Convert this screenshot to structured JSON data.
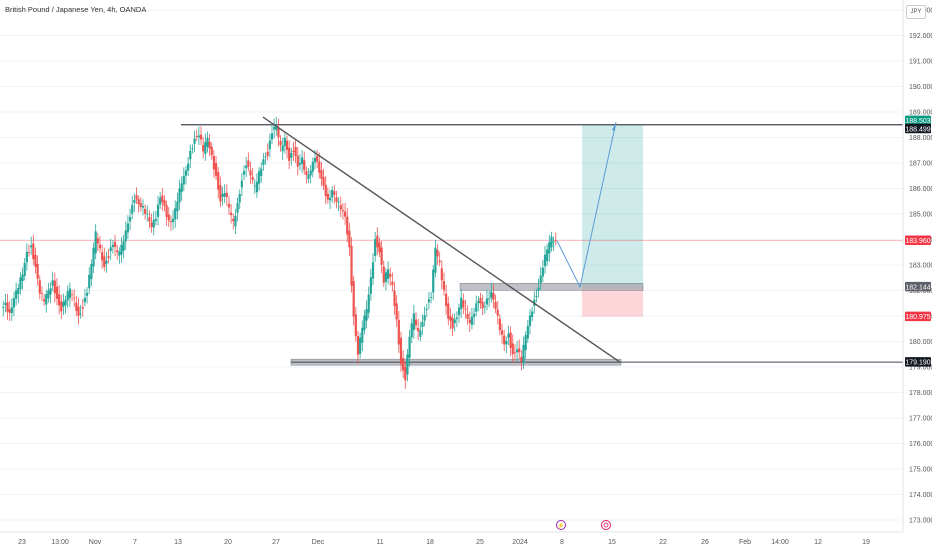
{
  "header": {
    "title": "British Pound / Japanese Yen, 4h, OANDA",
    "currency": "JPY"
  },
  "colors": {
    "up": "#26a69a",
    "down": "#ef5350",
    "bg": "#ffffff",
    "grid": "#f0f3f8"
  },
  "chart_data": {
    "type": "candlestick",
    "ylim": [
      172.6,
      193.4
    ],
    "y_ticks": [
      "193.000",
      "192.000",
      "191.000",
      "190.000",
      "189.000",
      "188.000",
      "187.000",
      "186.000",
      "185.000",
      "184.000",
      "183.000",
      "182.000",
      "181.000",
      "180.000",
      "179.000",
      "178.000",
      "177.000",
      "176.000",
      "175.000",
      "174.000",
      "173.000"
    ],
    "x_ticks": [
      "23",
      "13:00",
      "Nov",
      "7",
      "13",
      "20",
      "27",
      "Dec",
      "11",
      "18",
      "25",
      "2024",
      "8",
      "15",
      "22",
      "26",
      "Feb",
      "14:00",
      "12",
      "19"
    ],
    "close_path": [
      [
        0,
        181.2
      ],
      [
        0.03,
        181.4
      ],
      [
        0.05,
        181.1
      ],
      [
        0.07,
        181.8
      ],
      [
        0.09,
        182.2
      ],
      [
        0.11,
        182.6
      ],
      [
        0.13,
        183.4
      ],
      [
        0.15,
        183.7
      ],
      [
        0.17,
        183.0
      ],
      [
        0.19,
        182.0
      ],
      [
        0.21,
        181.6
      ],
      [
        0.23,
        181.9
      ],
      [
        0.25,
        182.3
      ],
      [
        0.27,
        181.7
      ],
      [
        0.29,
        181.3
      ],
      [
        0.31,
        181.7
      ],
      [
        0.33,
        182.0
      ],
      [
        0.35,
        181.6
      ],
      [
        0.37,
        181.0
      ],
      [
        0.39,
        181.4
      ],
      [
        0.41,
        182.0
      ],
      [
        0.43,
        183.0
      ],
      [
        0.45,
        184.2
      ],
      [
        0.47,
        183.6
      ],
      [
        0.49,
        183.0
      ],
      [
        0.51,
        183.4
      ],
      [
        0.53,
        183.8
      ],
      [
        0.55,
        183.4
      ],
      [
        0.57,
        183.7
      ],
      [
        0.59,
        184.4
      ],
      [
        0.61,
        185.0
      ],
      [
        0.63,
        185.6
      ],
      [
        0.65,
        185.3
      ],
      [
        0.67,
        185.2
      ],
      [
        0.69,
        185.0
      ],
      [
        0.71,
        184.6
      ],
      [
        0.73,
        184.9
      ],
      [
        0.75,
        185.6
      ],
      [
        0.77,
        185.2
      ],
      [
        0.79,
        184.7
      ],
      [
        0.81,
        184.9
      ],
      [
        0.83,
        185.6
      ],
      [
        0.85,
        186.2
      ],
      [
        0.87,
        186.6
      ],
      [
        0.89,
        187.4
      ],
      [
        0.91,
        188.0
      ],
      [
        0.93,
        188.2
      ],
      [
        0.95,
        187.5
      ],
      [
        0.97,
        187.9
      ],
      [
        0.99,
        187.2
      ],
      [
        1.01,
        186.5
      ],
      [
        1.03,
        185.6
      ],
      [
        1.05,
        185.9
      ],
      [
        1.07,
        185.2
      ],
      [
        1.09,
        184.6
      ],
      [
        1.11,
        185.4
      ],
      [
        1.13,
        186.4
      ],
      [
        1.15,
        187.0
      ],
      [
        1.17,
        186.5
      ],
      [
        1.19,
        186.0
      ],
      [
        1.21,
        186.6
      ],
      [
        1.23,
        187.2
      ],
      [
        1.25,
        187.4
      ],
      [
        1.27,
        188.2
      ],
      [
        1.29,
        188.4
      ],
      [
        1.31,
        187.6
      ],
      [
        1.33,
        188.0
      ],
      [
        1.35,
        187.2
      ],
      [
        1.37,
        187.5
      ],
      [
        1.39,
        186.8
      ],
      [
        1.41,
        187.1
      ],
      [
        1.43,
        186.5
      ],
      [
        1.45,
        186.8
      ],
      [
        1.47,
        187.3
      ],
      [
        1.49,
        186.6
      ],
      [
        1.51,
        186.0
      ],
      [
        1.53,
        185.5
      ],
      [
        1.55,
        186.0
      ],
      [
        1.57,
        185.6
      ],
      [
        1.59,
        185.2
      ],
      [
        1.61,
        184.8
      ],
      [
        1.63,
        183.6
      ],
      [
        1.65,
        181.0
      ],
      [
        1.67,
        179.6
      ],
      [
        1.69,
        180.6
      ],
      [
        1.71,
        181.2
      ],
      [
        1.73,
        182.4
      ],
      [
        1.75,
        184.0
      ],
      [
        1.77,
        183.6
      ],
      [
        1.79,
        182.4
      ],
      [
        1.81,
        182.8
      ],
      [
        1.83,
        182.1
      ],
      [
        1.85,
        180.8
      ],
      [
        1.87,
        179.2
      ],
      [
        1.89,
        178.6
      ],
      [
        1.91,
        180.2
      ],
      [
        1.93,
        181.0
      ],
      [
        1.95,
        180.3
      ],
      [
        1.97,
        180.8
      ],
      [
        1.99,
        181.4
      ],
      [
        2.01,
        181.8
      ],
      [
        2.03,
        183.6
      ],
      [
        2.05,
        183.0
      ],
      [
        2.07,
        182.0
      ],
      [
        2.09,
        181.0
      ],
      [
        2.11,
        180.6
      ],
      [
        2.13,
        180.9
      ],
      [
        2.15,
        181.6
      ],
      [
        2.17,
        181.2
      ],
      [
        2.19,
        180.8
      ],
      [
        2.21,
        181.2
      ],
      [
        2.23,
        181.6
      ],
      [
        2.25,
        181.2
      ],
      [
        2.27,
        181.6
      ],
      [
        2.29,
        182.0
      ],
      [
        2.31,
        181.4
      ],
      [
        2.33,
        180.5
      ],
      [
        2.35,
        179.8
      ],
      [
        2.37,
        180.2
      ],
      [
        2.39,
        179.5
      ],
      [
        2.41,
        179.8
      ],
      [
        2.43,
        179.3
      ],
      [
        2.45,
        180.2
      ],
      [
        2.47,
        180.9
      ],
      [
        2.49,
        181.6
      ],
      [
        2.51,
        182.2
      ],
      [
        2.53,
        183.0
      ],
      [
        2.55,
        183.6
      ],
      [
        2.57,
        184.0
      ],
      [
        2.59,
        183.9
      ]
    ],
    "levels": [
      {
        "price": 188.499,
        "label": "188.499",
        "kind": "resistance"
      },
      {
        "price": 179.19,
        "label": "179.190",
        "kind": "support"
      }
    ],
    "badges": [
      {
        "price": 188.503,
        "label": "188.503",
        "color": "#089981"
      },
      {
        "price": 188.499,
        "label": "188.499",
        "color": "#131722"
      },
      {
        "price": 183.96,
        "label": "183.960",
        "color": "#f23645"
      },
      {
        "price": 182.144,
        "label": "182.144",
        "color": "#5d606b"
      },
      {
        "price": 180.975,
        "label": "180.975",
        "color": "#f23645"
      },
      {
        "price": 179.19,
        "label": "179.190",
        "color": "#131722"
      }
    ],
    "trendline": {
      "from_price": 188.8,
      "to_price": 179.19
    },
    "position": {
      "entry": 182.144,
      "target": 188.503,
      "stop": 180.975
    },
    "current_price": 183.96
  }
}
